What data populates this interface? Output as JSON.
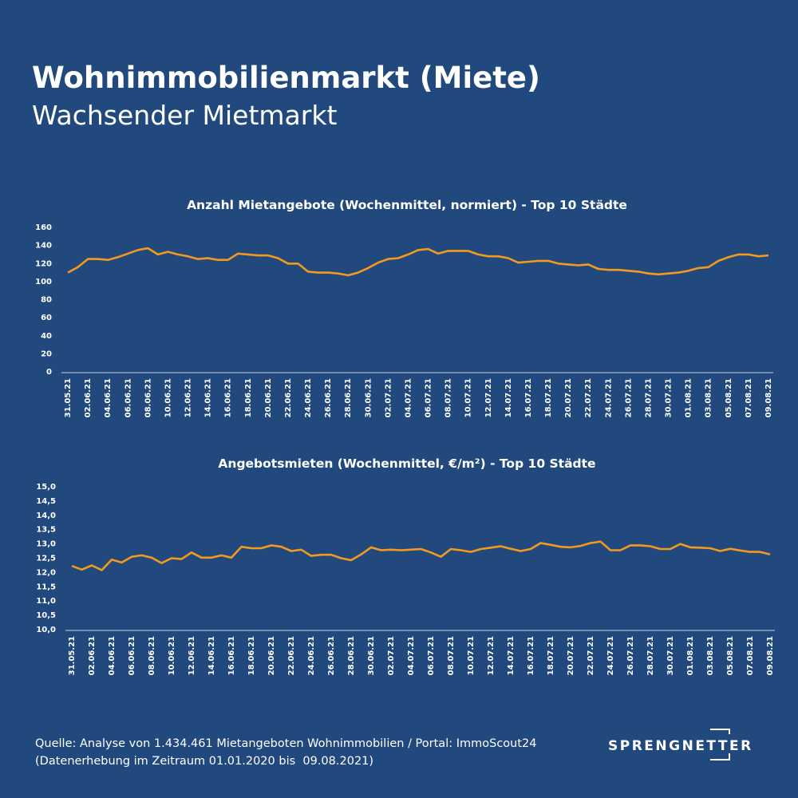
{
  "header": {
    "title": "Wohnimmobilienmarkt (Miete)",
    "subtitle": "Wachsender Mietmarkt"
  },
  "chart_data": [
    {
      "type": "line",
      "title": "Anzahl Mietangebote (Wochenmittel, normiert) - Top 10 Städte",
      "categories": [
        "31.05.21",
        null,
        "02.06.21",
        null,
        "04.06.21",
        null,
        "06.06.21",
        null,
        "08.06.21",
        null,
        "10.06.21",
        null,
        "12.06.21",
        null,
        "14.06.21",
        null,
        "16.06.21",
        null,
        "18.06.21",
        null,
        "20.06.21",
        null,
        "22.06.21",
        null,
        "24.06.21",
        null,
        "26.06.21",
        null,
        "28.06.21",
        null,
        "30.06.21",
        null,
        "02.07.21",
        null,
        "04.07.21",
        null,
        "06.07.21",
        null,
        "08.07.21",
        null,
        "10.07.21",
        null,
        "12.07.21",
        null,
        "14.07.21",
        null,
        "16.07.21",
        null,
        "18.07.21",
        null,
        "20.07.21",
        null,
        "22.07.21",
        null,
        "24.07.21",
        null,
        "26.07.21",
        null,
        "28.07.21",
        null,
        "30.07.21",
        null,
        "01.08.21",
        null,
        "03.08.21",
        null,
        "05.08.21",
        null,
        "07.08.21",
        null,
        "09.08.21"
      ],
      "series": [
        {
          "color": "#f39a1e",
          "values": [
            110,
            116,
            125,
            125,
            124,
            127,
            131,
            135,
            137,
            130,
            133,
            130,
            128,
            125,
            126,
            124,
            124,
            131,
            130,
            129,
            129,
            126,
            120,
            120,
            111,
            110,
            110,
            109,
            107,
            110,
            115,
            121,
            125,
            126,
            130,
            135,
            136,
            131,
            134,
            134,
            134,
            130,
            128,
            128,
            126,
            121,
            122,
            123,
            123,
            120,
            119,
            118,
            119,
            114,
            113,
            113,
            112,
            111,
            109,
            108,
            109,
            110,
            112,
            115,
            116,
            123,
            127,
            130,
            130,
            128,
            129
          ]
        }
      ],
      "ylim": [
        0,
        160
      ],
      "yticks": [
        0,
        20,
        40,
        60,
        80,
        100,
        120,
        140,
        160
      ]
    },
    {
      "type": "line",
      "title": "Angebotsmieten (Wochenmittel, €/m²) - Top 10 Städte",
      "categories": [
        "31.05.21",
        null,
        "02.06.21",
        null,
        "04.06.21",
        null,
        "06.06.21",
        null,
        "08.06.21",
        null,
        "10.06.21",
        null,
        "12.06.21",
        null,
        "14.06.21",
        null,
        "16.06.21",
        null,
        "18.06.21",
        null,
        "20.06.21",
        null,
        "22.06.21",
        null,
        "24.06.21",
        null,
        "26.06.21",
        null,
        "28.06.21",
        null,
        "30.06.21",
        null,
        "02.07.21",
        null,
        "04.07.21",
        null,
        "06.07.21",
        null,
        "08.07.21",
        null,
        "10.07.21",
        null,
        "12.07.21",
        null,
        "14.07.21",
        null,
        "16.07.21",
        null,
        "18.07.21",
        null,
        "20.07.21",
        null,
        "22.07.21",
        null,
        "24.07.21",
        null,
        "26.07.21",
        null,
        "28.07.21",
        null,
        "30.07.21",
        null,
        "01.08.21",
        null,
        "03.08.21",
        null,
        "05.08.21",
        null,
        "07.08.21",
        null,
        "09.08.21"
      ],
      "series": [
        {
          "color": "#f39a1e",
          "values": [
            12.23,
            12.1,
            12.25,
            12.08,
            12.45,
            12.35,
            12.55,
            12.6,
            12.52,
            12.33,
            12.5,
            12.47,
            12.7,
            12.52,
            12.52,
            12.6,
            12.52,
            12.9,
            12.85,
            12.85,
            12.95,
            12.9,
            12.75,
            12.8,
            12.58,
            12.62,
            12.62,
            12.5,
            12.43,
            12.63,
            12.88,
            12.78,
            12.8,
            12.78,
            12.8,
            12.82,
            12.7,
            12.55,
            12.82,
            12.78,
            12.72,
            12.82,
            12.87,
            12.92,
            12.83,
            12.75,
            12.82,
            13.03,
            12.97,
            12.9,
            12.88,
            12.93,
            13.03,
            13.08,
            12.78,
            12.78,
            12.95,
            12.95,
            12.92,
            12.82,
            12.82,
            13.0,
            12.88,
            12.87,
            12.85,
            12.75,
            12.83,
            12.77,
            12.72,
            12.72,
            12.63
          ]
        }
      ],
      "ylim": [
        10,
        15
      ],
      "yticks": [
        {
          "value": 10,
          "label": "10,0"
        },
        {
          "value": 10.5,
          "label": "10,5"
        },
        {
          "value": 11,
          "label": "11,0"
        },
        {
          "value": 11.5,
          "label": "11,5"
        },
        {
          "value": 12,
          "label": "12,0"
        },
        {
          "value": 12.5,
          "label": "12,5"
        },
        {
          "value": 13,
          "label": "13,0"
        },
        {
          "value": 13.5,
          "label": "13,5"
        },
        {
          "value": 14,
          "label": "14,0"
        },
        {
          "value": 14.5,
          "label": "14,5"
        },
        {
          "value": 15,
          "label": "15,0"
        }
      ]
    }
  ],
  "footer": {
    "source": [
      "Quelle: Analyse von 1.434.461 Mietangeboten Wohnimmobilien / Portal: ImmoScout24",
      "(Datenerhebung im Zeitraum 01.01.2020 bis  09.08.2021)"
    ],
    "logo": "SPRENGNETTER"
  }
}
